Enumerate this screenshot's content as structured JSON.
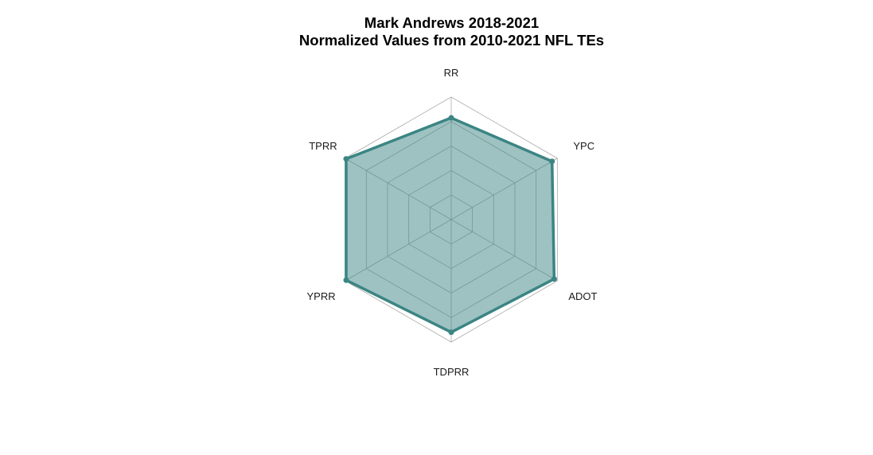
{
  "chart_data": {
    "type": "radar",
    "title": "Mark Andrews 2018-2021",
    "subtitle": "Normalized Values from 2010-2021 NFL TEs",
    "axes": [
      "RR",
      "YPC",
      "ADOT",
      "TDPRR",
      "YPRR",
      "TPRR"
    ],
    "series": [
      {
        "values": [
          0.83,
          0.95,
          0.97,
          0.92,
          0.99,
          0.99
        ]
      }
    ],
    "range": [
      0,
      1
    ],
    "grid_levels": 5,
    "colors": {
      "line": "#3b8583",
      "fill": "#3b8583",
      "fill_opacity": 0.5,
      "grid": "#aaaaaa"
    }
  }
}
